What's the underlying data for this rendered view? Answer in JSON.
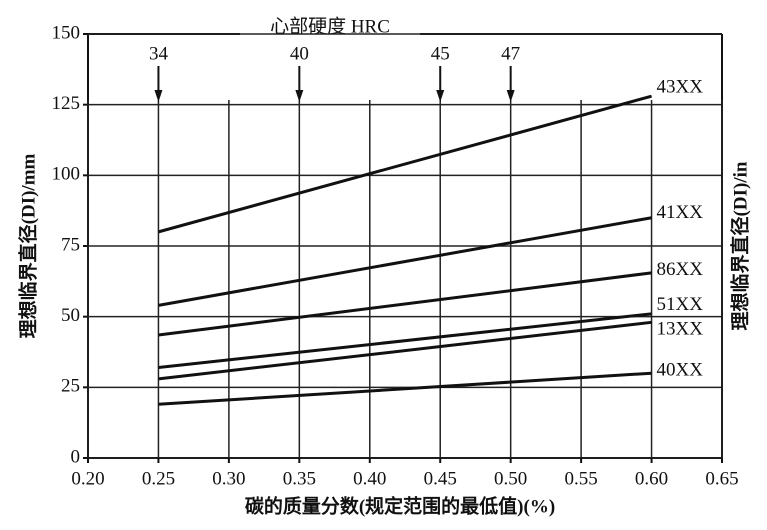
{
  "chart_data": {
    "type": "line",
    "top_axis_title": "心部硬度 HRC",
    "hardness_markers": [
      {
        "x": 0.25,
        "value": 34
      },
      {
        "x": 0.35,
        "value": 40
      },
      {
        "x": 0.45,
        "value": 45
      },
      {
        "x": 0.5,
        "value": 47
      }
    ],
    "x_label": "碳的质量分数(规定范围的最低值)(%)",
    "y_label": "理想临界直径(DI)/mm",
    "y2_label": "理想临界直径(DI)/in",
    "x": [
      0.25,
      0.6
    ],
    "series": [
      {
        "name": "43XX",
        "color": "#111111",
        "values": [
          80,
          128
        ]
      },
      {
        "name": "41XX",
        "color": "#111111",
        "values": [
          54,
          85
        ]
      },
      {
        "name": "86XX",
        "color": "#111111",
        "values": [
          43.5,
          65.5
        ]
      },
      {
        "name": "51XX",
        "color": "#111111",
        "values": [
          32,
          51
        ]
      },
      {
        "name": "13XX",
        "color": "#111111",
        "values": [
          28,
          48
        ]
      },
      {
        "name": "40XX",
        "color": "#111111",
        "values": [
          19,
          30
        ]
      }
    ],
    "xlim": [
      0.2,
      0.65
    ],
    "xticks": [
      {
        "value": 0.2,
        "label": "0.20"
      },
      0.25,
      {
        "value": 0.3,
        "label": "0.30"
      },
      0.35,
      {
        "value": 0.4,
        "label": "0.40"
      },
      0.45,
      {
        "value": 0.5,
        "label": "0.50"
      },
      0.55,
      {
        "value": 0.6,
        "label": "0.60"
      },
      0.65
    ],
    "ylim": [
      0,
      150
    ],
    "yticks": [
      0,
      25,
      50,
      75,
      100,
      125,
      150
    ],
    "grid": true
  }
}
